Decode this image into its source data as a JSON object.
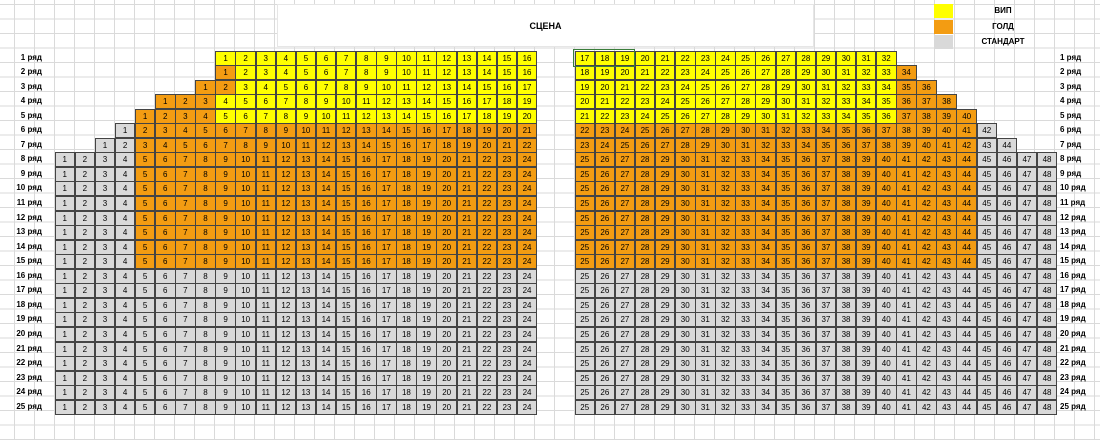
{
  "stage_label": "СЦЕНА",
  "row_suffix": "ряд",
  "rows_count": 25,
  "legend": [
    {
      "key": "vip",
      "label": "ВИП",
      "color": "#ffff00"
    },
    {
      "key": "gold",
      "label": "ГОЛД",
      "color": "#f39c12"
    },
    {
      "key": "standard",
      "label": "СТАНДАРТ",
      "color": "#d9d9d9"
    }
  ],
  "colors": {
    "vip": "#ffff00",
    "gold": "#f39c12",
    "standard": "#d9d9d9",
    "grid": "#dadada"
  },
  "seat_map": {
    "left": [
      {
        "row": 1,
        "start": 1,
        "end": 16,
        "vip": [
          1,
          16
        ]
      },
      {
        "row": 2,
        "start": 1,
        "end": 16,
        "gold": [
          1,
          1
        ],
        "vip": [
          2,
          16
        ]
      },
      {
        "row": 3,
        "start": 1,
        "end": 17,
        "gold": [
          1,
          2
        ],
        "vip": [
          3,
          17
        ]
      },
      {
        "row": 4,
        "start": 1,
        "end": 19,
        "gold": [
          1,
          3
        ],
        "vip": [
          4,
          19
        ]
      },
      {
        "row": 5,
        "start": 1,
        "end": 20,
        "gold": [
          1,
          4
        ],
        "vip": [
          5,
          20
        ]
      },
      {
        "row": 6,
        "start": 1,
        "end": 21,
        "std": [
          1,
          1
        ],
        "gold": [
          2,
          21
        ]
      },
      {
        "row": 7,
        "start": 1,
        "end": 22,
        "std": [
          1,
          2
        ],
        "gold": [
          3,
          22
        ]
      },
      {
        "row": 8,
        "start": 1,
        "end": 24,
        "std": [
          1,
          4
        ],
        "gold": [
          5,
          24
        ]
      },
      {
        "row": 9,
        "start": 1,
        "end": 24,
        "std": [
          1,
          4
        ],
        "gold": [
          5,
          24
        ]
      },
      {
        "row": 10,
        "start": 1,
        "end": 24,
        "std": [
          1,
          4
        ],
        "gold": [
          5,
          24
        ]
      },
      {
        "row": 11,
        "start": 1,
        "end": 24,
        "std": [
          1,
          4
        ],
        "gold": [
          5,
          24
        ]
      },
      {
        "row": 12,
        "start": 1,
        "end": 24,
        "std": [
          1,
          4
        ],
        "gold": [
          5,
          24
        ]
      },
      {
        "row": 13,
        "start": 1,
        "end": 24,
        "std": [
          1,
          4
        ],
        "gold": [
          5,
          24
        ]
      },
      {
        "row": 14,
        "start": 1,
        "end": 24,
        "std": [
          1,
          4
        ],
        "gold": [
          5,
          24
        ]
      },
      {
        "row": 15,
        "start": 1,
        "end": 24,
        "std": [
          1,
          4
        ],
        "gold": [
          5,
          24
        ]
      },
      {
        "row": 16,
        "start": 1,
        "end": 24,
        "std": [
          1,
          24
        ]
      },
      {
        "row": 17,
        "start": 1,
        "end": 24,
        "std": [
          1,
          24
        ]
      },
      {
        "row": 18,
        "start": 1,
        "end": 24,
        "std": [
          1,
          24
        ]
      },
      {
        "row": 19,
        "start": 1,
        "end": 24,
        "std": [
          1,
          24
        ]
      },
      {
        "row": 20,
        "start": 1,
        "end": 24,
        "std": [
          1,
          24
        ]
      },
      {
        "row": 21,
        "start": 1,
        "end": 24,
        "std": [
          1,
          24
        ]
      },
      {
        "row": 22,
        "start": 1,
        "end": 24,
        "std": [
          1,
          24
        ]
      },
      {
        "row": 23,
        "start": 1,
        "end": 24,
        "std": [
          1,
          24
        ]
      },
      {
        "row": 24,
        "start": 1,
        "end": 24,
        "std": [
          1,
          24
        ]
      },
      {
        "row": 25,
        "start": 1,
        "end": 24,
        "std": [
          1,
          24
        ]
      }
    ],
    "right": [
      {
        "row": 1,
        "start": 17,
        "end": 32,
        "vip": [
          17,
          32
        ]
      },
      {
        "row": 2,
        "start": 18,
        "end": 34,
        "vip": [
          18,
          33
        ],
        "gold": [
          34,
          34
        ]
      },
      {
        "row": 3,
        "start": 19,
        "end": 36,
        "vip": [
          19,
          34
        ],
        "gold": [
          35,
          36
        ]
      },
      {
        "row": 4,
        "start": 20,
        "end": 38,
        "vip": [
          20,
          35
        ],
        "gold": [
          36,
          38
        ]
      },
      {
        "row": 5,
        "start": 21,
        "end": 40,
        "vip": [
          21,
          36
        ],
        "gold": [
          37,
          40
        ]
      },
      {
        "row": 6,
        "start": 22,
        "end": 42,
        "gold": [
          22,
          41
        ],
        "std": [
          42,
          42
        ]
      },
      {
        "row": 7,
        "start": 23,
        "end": 44,
        "gold": [
          23,
          42
        ],
        "std": [
          43,
          44
        ]
      },
      {
        "row": 8,
        "start": 25,
        "end": 48,
        "gold": [
          25,
          44
        ],
        "std": [
          45,
          48
        ]
      },
      {
        "row": 9,
        "start": 25,
        "end": 48,
        "gold": [
          25,
          44
        ],
        "std": [
          45,
          48
        ]
      },
      {
        "row": 10,
        "start": 25,
        "end": 48,
        "gold": [
          25,
          44
        ],
        "std": [
          45,
          48
        ]
      },
      {
        "row": 11,
        "start": 25,
        "end": 48,
        "gold": [
          25,
          44
        ],
        "std": [
          45,
          48
        ]
      },
      {
        "row": 12,
        "start": 25,
        "end": 48,
        "gold": [
          25,
          44
        ],
        "std": [
          45,
          48
        ]
      },
      {
        "row": 13,
        "start": 25,
        "end": 48,
        "gold": [
          25,
          44
        ],
        "std": [
          45,
          48
        ]
      },
      {
        "row": 14,
        "start": 25,
        "end": 48,
        "gold": [
          25,
          44
        ],
        "std": [
          45,
          48
        ]
      },
      {
        "row": 15,
        "start": 25,
        "end": 48,
        "gold": [
          25,
          44
        ],
        "std": [
          45,
          48
        ]
      },
      {
        "row": 16,
        "start": 25,
        "end": 48,
        "std": [
          25,
          48
        ]
      },
      {
        "row": 17,
        "start": 25,
        "end": 48,
        "std": [
          25,
          48
        ]
      },
      {
        "row": 18,
        "start": 25,
        "end": 48,
        "std": [
          25,
          48
        ]
      },
      {
        "row": 19,
        "start": 25,
        "end": 48,
        "std": [
          25,
          48
        ]
      },
      {
        "row": 20,
        "start": 25,
        "end": 48,
        "std": [
          25,
          48
        ]
      },
      {
        "row": 21,
        "start": 25,
        "end": 48,
        "std": [
          25,
          48
        ]
      },
      {
        "row": 22,
        "start": 25,
        "end": 48,
        "std": [
          25,
          48
        ]
      },
      {
        "row": 23,
        "start": 25,
        "end": 48,
        "std": [
          25,
          48
        ]
      },
      {
        "row": 24,
        "start": 25,
        "end": 48,
        "std": [
          25,
          48
        ]
      },
      {
        "row": 25,
        "start": 25,
        "end": 48,
        "std": [
          25,
          48
        ]
      }
    ]
  }
}
